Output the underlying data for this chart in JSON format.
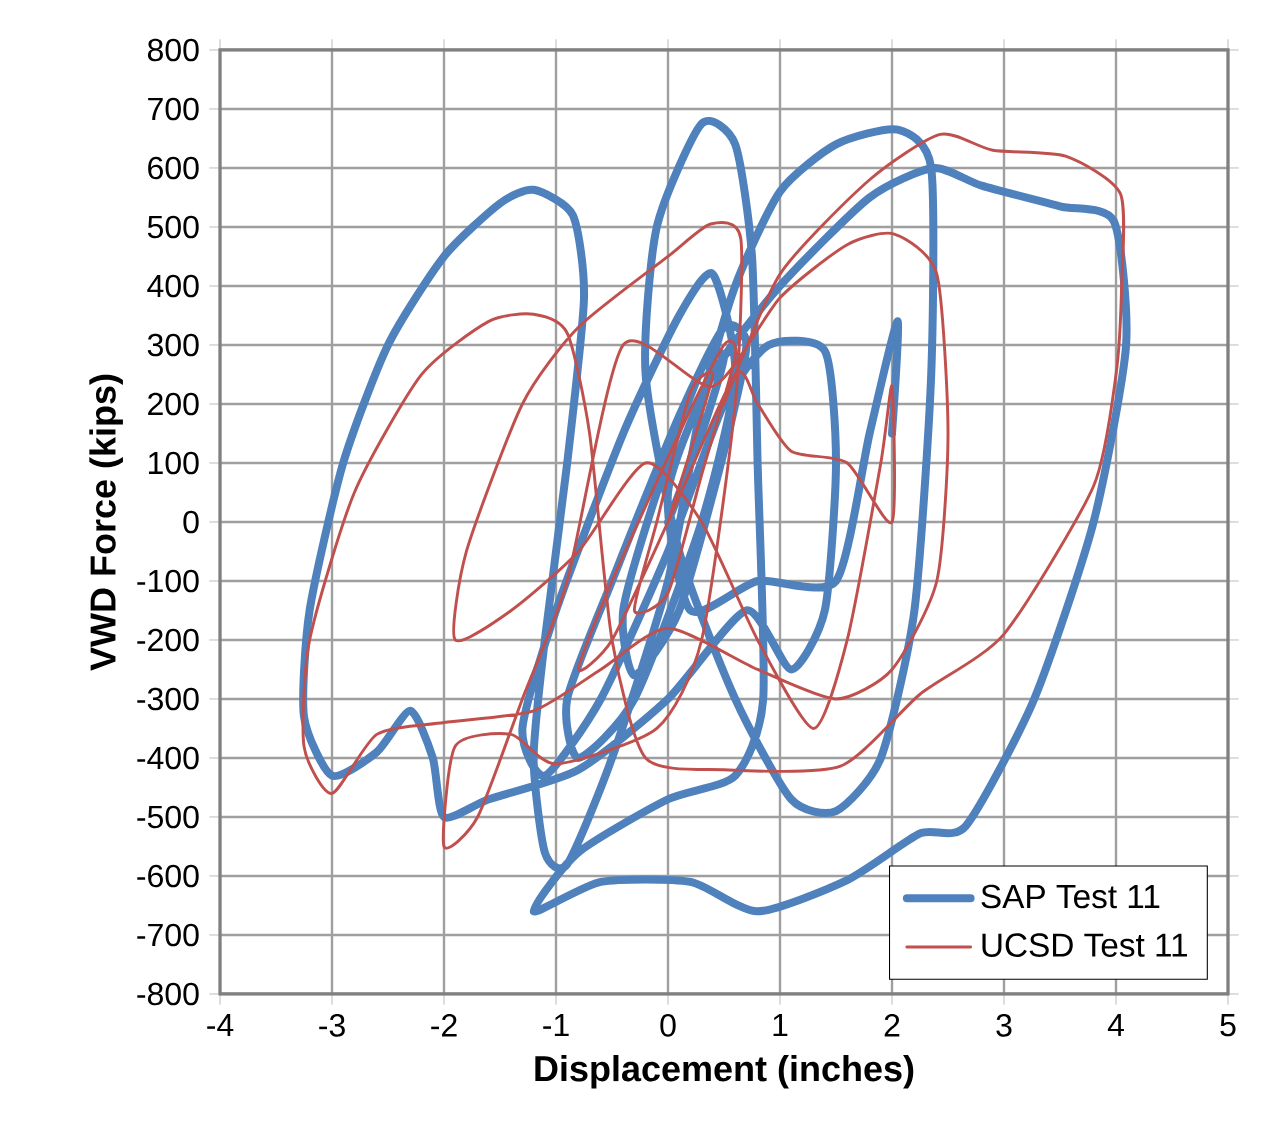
{
  "chart_data": {
    "type": "line",
    "xlabel": "Displacement (inches)",
    "ylabel": "VWD Force (kips)",
    "xlim": [
      -4,
      5
    ],
    "ylim": [
      -800,
      800
    ],
    "xticks": [
      -4,
      -3,
      -2,
      -1,
      0,
      1,
      2,
      3,
      4,
      5
    ],
    "yticks": [
      -800,
      -700,
      -600,
      -500,
      -400,
      -300,
      -200,
      -100,
      0,
      100,
      200,
      300,
      400,
      500,
      600,
      700,
      800
    ],
    "grid": true,
    "legend": "bottom right",
    "series": [
      {
        "name": "SAP Test 11",
        "color": "#4f81bd",
        "x": [
          0,
          0.3,
          0.5,
          0.3,
          -0.1,
          -0.4,
          -0.3,
          0.1,
          0.5,
          0.7,
          0.5,
          0.1,
          -0.5,
          -0.9,
          -0.8,
          -0.3,
          0.3,
          0.6,
          0.4,
          0.1,
          -0.4,
          -1.0,
          -1.3,
          -1.1,
          -0.6,
          0.0,
          0.5,
          0.9,
          1.4,
          1.5,
          1.4,
          1.1,
          0.7,
          0.0,
          -0.8,
          -1.6,
          -2.0,
          -2.1,
          -2.3,
          -2.6,
          -3.0,
          -3.25,
          -3.2,
          -2.9,
          -2.5,
          -2.0,
          -1.5,
          -1.2,
          -0.85,
          -0.75,
          -0.9,
          -1.1,
          -1.2,
          -1.1,
          -0.9,
          -0.5,
          0.0,
          0.3,
          0.6,
          1.0,
          1.5,
          2.05,
          2.35,
          2.35,
          2.2,
          1.9,
          1.5,
          1.1,
          0.6,
          0.1,
          -0.2,
          -0.1,
          0.3,
          0.6,
          0.75,
          0.8,
          0.85,
          0.6,
          0.0,
          -0.8,
          -1.2,
          -0.6,
          0.2,
          0.8,
          1.6,
          2.25,
          2.66,
          3.27,
          3.8,
          4.09,
          3.98,
          3.5,
          2.8,
          2.37,
          1.8,
          1.0,
          0.4,
          0.0,
          0.2,
          0.8,
          1.5,
          1.8,
          2.05,
          2.0
        ],
        "values": [
          0,
          150,
          280,
          260,
          50,
          -150,
          -260,
          -150,
          120,
          300,
          330,
          180,
          -100,
          -300,
          -400,
          -300,
          0,
          250,
          420,
          350,
          150,
          -150,
          -350,
          -430,
          -300,
          -50,
          200,
          300,
          290,
          100,
          -150,
          -250,
          -150,
          -300,
          -420,
          -470,
          -500,
          -400,
          -320,
          -390,
          -430,
          -330,
          -150,
          100,
          300,
          450,
          540,
          563,
          520,
          380,
          100,
          -200,
          -400,
          -560,
          -580,
          -400,
          -100,
          200,
          400,
          560,
          640,
          665,
          600,
          250,
          -150,
          -400,
          -490,
          -470,
          -300,
          -50,
          250,
          500,
          675,
          640,
          450,
          100,
          -300,
          -430,
          -470,
          -560,
          -660,
          -610,
          -610,
          -660,
          -607,
          -528,
          -515,
          -300,
          0,
          300,
          510,
          535,
          570,
          600,
          550,
          400,
          250,
          50,
          -150,
          -100,
          -100,
          150,
          340,
          150
        ]
      },
      {
        "name": "UCSD Test 11",
        "color": "#c0504d",
        "x": [
          0,
          0.2,
          0.4,
          0.2,
          -0.1,
          -0.3,
          0,
          0.3,
          0.6,
          0.5,
          0.1,
          -0.5,
          -0.8,
          -0.5,
          0.0,
          0.6,
          0.8,
          1.1,
          1.6,
          2.0,
          2.0,
          1.9,
          1.6,
          1.3,
          0.8,
          0.3,
          -0.2,
          -0.8,
          -1.4,
          -1.9,
          -1.8,
          -1.3,
          -0.8,
          0.0,
          0.38,
          0.65,
          0.6,
          0.3,
          -0.1,
          -1.0,
          -1.4,
          -1.9,
          -2.0,
          -1.7,
          -1.3,
          -0.9,
          -0.4,
          0.4,
          1.0,
          1.6,
          2.02,
          2.4,
          2.5,
          2.4,
          2.0,
          1.5,
          0.8,
          0.0,
          -0.6,
          -1.2,
          -2.0,
          -2.6,
          -3.0,
          -3.25,
          -3.2,
          -2.8,
          -2.2,
          -1.6,
          -1.2,
          -0.9,
          -0.7,
          -0.5,
          -0.2,
          0.5,
          1.54,
          2.25,
          3.0,
          3.8,
          4.0,
          4.05,
          4.04,
          3.55,
          2.9,
          2.43,
          1.8,
          1.0,
          0.5
        ],
        "values": [
          0,
          120,
          250,
          220,
          0,
          -150,
          -120,
          80,
          280,
          300,
          150,
          -100,
          -250,
          -200,
          0,
          250,
          200,
          120,
          100,
          0,
          230,
          100,
          -200,
          -350,
          -200,
          0,
          100,
          -50,
          -150,
          -200,
          -50,
          200,
          330,
          450,
          505,
          480,
          200,
          -200,
          -350,
          -410,
          -360,
          -380,
          -550,
          -500,
          -300,
          -100,
          300,
          230,
          380,
          470,
          488,
          420,
          150,
          -100,
          -250,
          -300,
          -250,
          -180,
          -250,
          -320,
          -340,
          -360,
          -460,
          -380,
          -200,
          50,
          250,
          340,
          352,
          320,
          150,
          -200,
          -400,
          -420,
          -414,
          -292,
          -190,
          61,
          250,
          400,
          556,
          620,
          630,
          657,
          580,
          420,
          200
        ]
      }
    ]
  }
}
